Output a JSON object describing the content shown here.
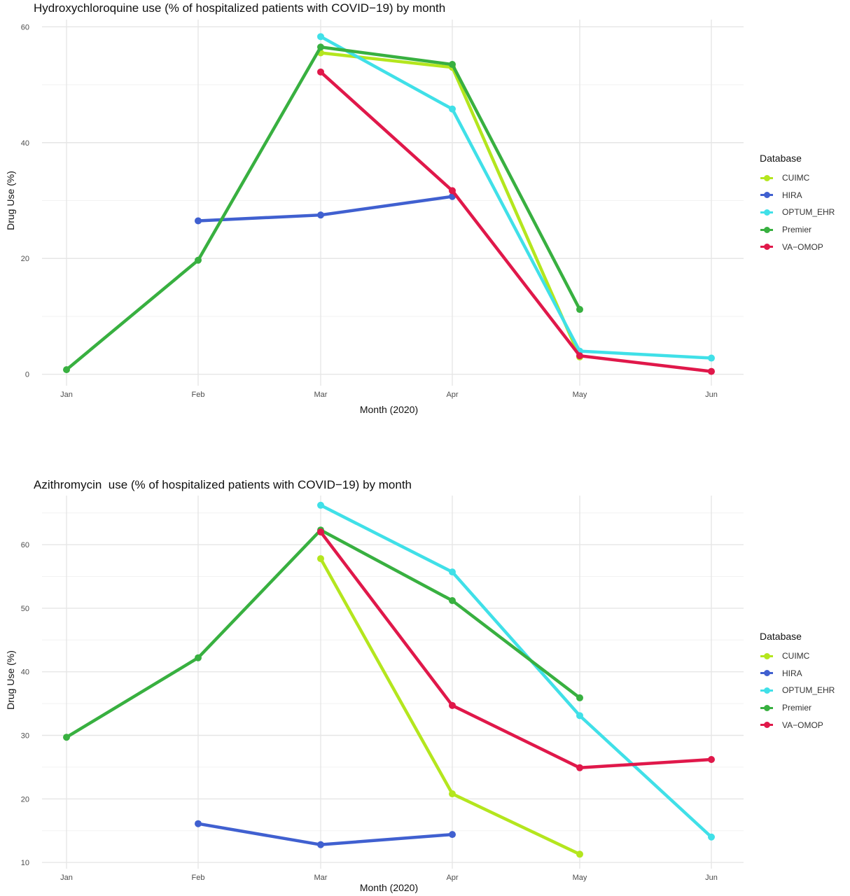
{
  "chart_data": [
    {
      "type": "line",
      "title": "Hydroxychloroquine use (% of hospitalized patients with COVID−19) by month",
      "xlabel": "Month (2020)",
      "ylabel": "Drug Use (%)",
      "categories": [
        "Jan",
        "Feb",
        "Mar",
        "Apr",
        "May",
        "Jun"
      ],
      "yticks": [
        0,
        20,
        40,
        60
      ],
      "ylim": [
        -1,
        61
      ],
      "grid": true,
      "legend_position": "right",
      "legend_title": "Database",
      "series": [
        {
          "name": "CUIMC",
          "color": "#b4e61e",
          "values": [
            null,
            null,
            55.5,
            53.0,
            3.0,
            null
          ]
        },
        {
          "name": "HIRA",
          "color": "#4060d0",
          "values": [
            null,
            26.5,
            27.5,
            30.7,
            null,
            null
          ]
        },
        {
          "name": "OPTUM_EHR",
          "color": "#40e0e8",
          "values": [
            null,
            null,
            58.3,
            45.8,
            4.0,
            2.8
          ]
        },
        {
          "name": "Premier",
          "color": "#38b040",
          "values": [
            0.8,
            19.7,
            56.5,
            53.5,
            11.2,
            null
          ]
        },
        {
          "name": "VA−OMOP",
          "color": "#e0184a",
          "values": [
            null,
            null,
            52.2,
            31.7,
            3.2,
            0.5
          ]
        }
      ]
    },
    {
      "type": "line",
      "title": "Azithromycin  use (% of hospitalized patients with COVID−19) by month",
      "xlabel": "Month (2020)",
      "ylabel": "Drug Use (%)",
      "categories": [
        "Jan",
        "Feb",
        "Mar",
        "Apr",
        "May",
        "Jun"
      ],
      "yticks": [
        10,
        20,
        30,
        40,
        50,
        60
      ],
      "ylim": [
        9.9,
        67.5
      ],
      "grid": true,
      "legend_position": "right",
      "legend_title": "Database",
      "series": [
        {
          "name": "CUIMC",
          "color": "#b4e61e",
          "values": [
            null,
            null,
            57.8,
            20.8,
            11.3,
            null
          ]
        },
        {
          "name": "HIRA",
          "color": "#4060d0",
          "values": [
            null,
            16.1,
            12.8,
            14.4,
            null,
            null
          ]
        },
        {
          "name": "OPTUM_EHR",
          "color": "#40e0e8",
          "values": [
            null,
            null,
            66.2,
            55.7,
            33.1,
            14.0
          ]
        },
        {
          "name": "Premier",
          "color": "#38b040",
          "values": [
            29.7,
            42.2,
            62.3,
            51.2,
            35.9,
            null
          ]
        },
        {
          "name": "VA−OMOP",
          "color": "#e0184a",
          "values": [
            null,
            null,
            62.0,
            34.7,
            24.9,
            26.2
          ]
        }
      ]
    }
  ]
}
